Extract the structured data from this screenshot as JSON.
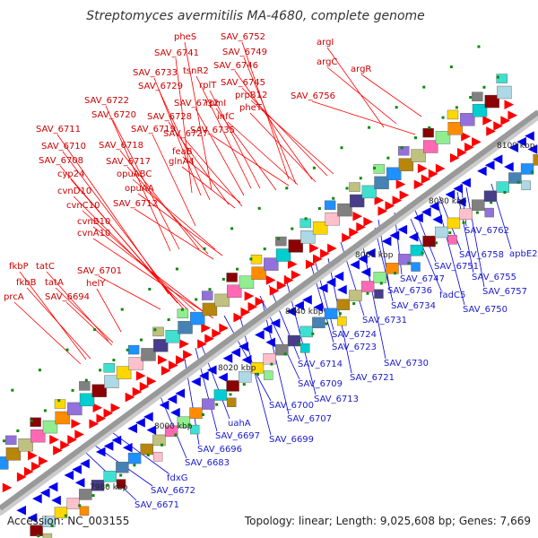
{
  "header": {
    "title": "Streptomyces avermitilis MA-4680, complete genome"
  },
  "footer": {
    "accession": "Accession: NC_003155",
    "summary": "Topology: linear; Length: 9,025,608 bp; Genes: 7,669"
  },
  "colors": {
    "forward_label": "#cc0000",
    "reverse_label": "#1a1acc",
    "forward_feature": "#ff0000",
    "reverse_feature": "#0000ee",
    "backbone": "#999999",
    "tick_marker": "#0a8a0a"
  },
  "scale": {
    "unit": "kbp",
    "ticks": [
      {
        "kbp": 7980,
        "label": "7980 kbp"
      },
      {
        "kbp": 8000,
        "label": "8000 kbp"
      },
      {
        "kbp": 8020,
        "label": "8020 kbp"
      },
      {
        "kbp": 8040,
        "label": "8040 kbp"
      },
      {
        "kbp": 8060,
        "label": "8060 kbp"
      },
      {
        "kbp": 8080,
        "label": "8080 kbp"
      },
      {
        "kbp": 8100,
        "label": "8100 kbp"
      }
    ]
  },
  "forward_labels": [
    "SAV_6752",
    "pheS",
    "SAV_6741",
    "SAV_6749",
    "argI",
    "SAV_6746",
    "tsnR2",
    "SAV_6733",
    "argC",
    "argR",
    "SAV_6745",
    "rplT",
    "prpB12",
    "SAV_6729",
    "SAV_6756",
    "rpmI",
    "SAV_6732",
    "SAV_6722",
    "pheT",
    "infC",
    "SAV_6728",
    "SAV_6720",
    "SAV_6719",
    "SAV_6735",
    "SAV_6711",
    "SAV_6727",
    "SAV_6710",
    "SAV_6718",
    "feaB",
    "glnA4",
    "SAV_6708",
    "SAV_6717",
    "opuABC",
    "cyp24",
    "opuAA",
    "cvnD10",
    "SAV_6712",
    "cvnC10",
    "cvnB10",
    "cvnA10",
    "fkbP",
    "tatC",
    "SAV_6701",
    "fkbB",
    "tatA",
    "helY",
    "prcA",
    "SAV_6694"
  ],
  "reverse_labels": [
    "SAV_6762",
    "apbE2",
    "SAV_6758",
    "SAV_6751",
    "SAV_6755",
    "SAV_6747",
    "SAV_6757",
    "SAV_6736",
    "fadC5",
    "SAV_6750",
    "SAV_6734",
    "SAV_6731",
    "SAV_6724",
    "SAV_6723",
    "SAV_6730",
    "SAV_6714",
    "SAV_6721",
    "SAV_6709",
    "SAV_6713",
    "SAV_6700",
    "SAV_6707",
    "uahA",
    "SAV_6697",
    "SAV_6699",
    "SAV_6696",
    "SAV_6683",
    "fdxG",
    "SAV_6672",
    "SAV_6671"
  ],
  "tracks": {
    "forward_arrow_color": "#ff0000",
    "reverse_arrow_color": "#0000ee",
    "cog_colors": [
      "#4682b4",
      "#1e90ff",
      "#b8860b",
      "#c0c080",
      "#ff69b4",
      "#90ee90",
      "#ff8c00",
      "#9370db",
      "#00ced1",
      "#8b0000",
      "#add8e6",
      "#ffd700",
      "#ffc0cb",
      "#808080",
      "#483d8b",
      "#40e0d0"
    ]
  }
}
